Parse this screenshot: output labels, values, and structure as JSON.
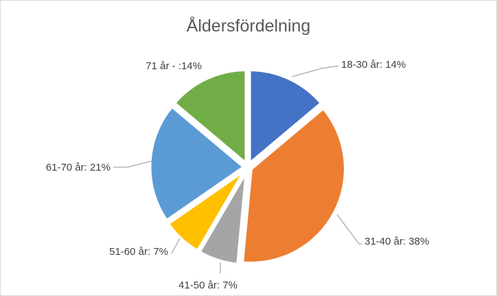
{
  "chart_data": {
    "type": "pie",
    "title": "Åldersfördelning",
    "categories": [
      "18-30 år",
      "31-40 år",
      "41-50 år",
      "51-60 år",
      "61-70 år",
      "71 år -"
    ],
    "values": [
      14,
      38,
      7,
      7,
      21,
      14
    ],
    "data_labels": [
      "18-30 år: 14%",
      "31-40 år: 38%",
      "41-50 år: 7%",
      "51-60 år: 7%",
      "61-70 år: 21%",
      "71 år - :14%"
    ],
    "colors": [
      "#4472c4",
      "#ed7d31",
      "#a5a5a5",
      "#ffc000",
      "#5b9bd5",
      "#70ad47"
    ],
    "legend": "none"
  }
}
